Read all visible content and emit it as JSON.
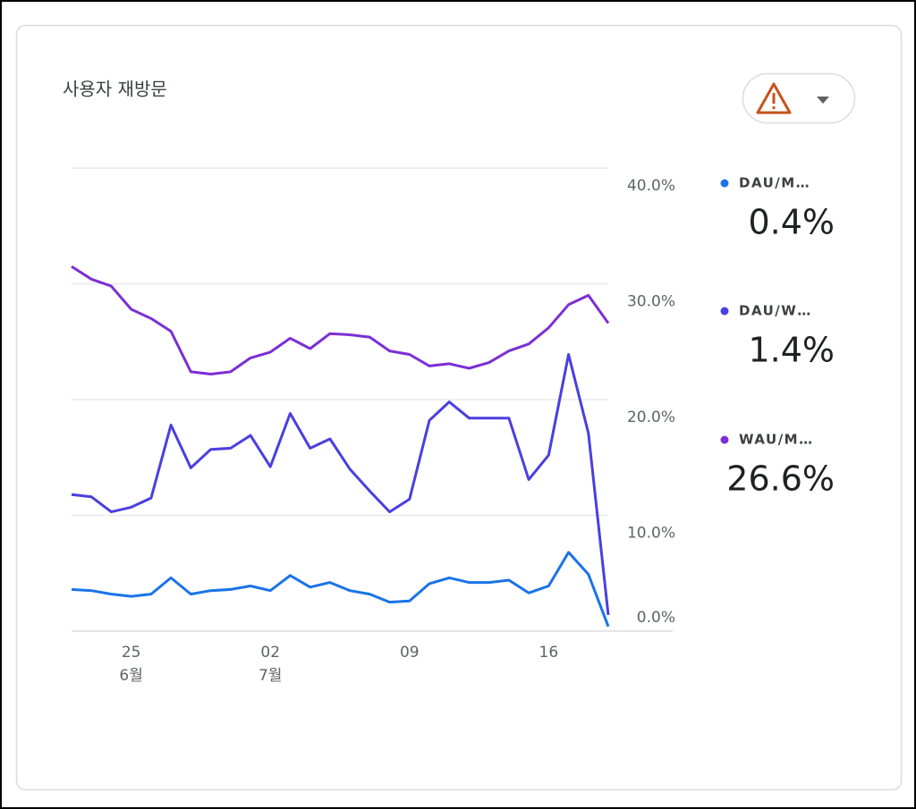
{
  "chart_data": {
    "type": "line",
    "title": "사용자 재방문",
    "categories": [
      null,
      null,
      null,
      "25",
      null,
      null,
      null,
      null,
      null,
      null,
      "02",
      null,
      null,
      null,
      null,
      null,
      null,
      "09",
      null,
      null,
      null,
      null,
      null,
      null,
      "16",
      null,
      null,
      null
    ],
    "category_sublabels": [
      null,
      null,
      null,
      "6월",
      null,
      null,
      null,
      null,
      null,
      null,
      "7월",
      null,
      null,
      null,
      null,
      null,
      null,
      null,
      null,
      null,
      null,
      null,
      null,
      null,
      null,
      null,
      null,
      null
    ],
    "ylim": [
      0,
      40
    ],
    "yticks": [
      {
        "value": 0,
        "label": "0.0%"
      },
      {
        "value": 10,
        "label": "10.0%"
      },
      {
        "value": 20,
        "label": "20.0%"
      },
      {
        "value": 30,
        "label": "30.0%"
      },
      {
        "value": 40,
        "label": "40.0%"
      }
    ],
    "grid": true,
    "legend": "right",
    "series": [
      {
        "name": "DAU/M…",
        "color": "#1a73e8",
        "values": [
          3.6,
          3.5,
          3.2,
          3.0,
          3.2,
          4.6,
          3.2,
          3.5,
          3.6,
          3.9,
          3.5,
          4.8,
          3.8,
          4.2,
          3.5,
          3.2,
          2.5,
          2.6,
          4.1,
          4.6,
          4.2,
          4.2,
          4.4,
          3.3,
          3.9,
          6.8,
          4.9,
          0.4
        ],
        "value_labels": [
          null,
          null,
          null,
          null,
          null,
          null,
          null,
          null,
          null,
          null,
          null,
          null,
          null,
          null,
          null,
          null,
          null,
          null,
          null,
          null,
          null,
          null,
          null,
          null,
          null,
          null,
          null,
          "0.4%"
        ]
      },
      {
        "name": "DAU/W…",
        "color": "#4a3fe0",
        "values": [
          11.8,
          11.6,
          10.3,
          10.7,
          11.5,
          17.8,
          14.1,
          15.7,
          15.8,
          16.9,
          14.2,
          18.8,
          15.8,
          16.6,
          14.0,
          12.1,
          10.3,
          11.4,
          18.2,
          19.8,
          18.4,
          18.4,
          18.4,
          13.1,
          15.2,
          23.9,
          17.1,
          1.4
        ],
        "value_labels": [
          null,
          null,
          null,
          null,
          null,
          null,
          null,
          null,
          null,
          null,
          null,
          null,
          null,
          null,
          null,
          null,
          null,
          null,
          null,
          null,
          null,
          null,
          null,
          null,
          null,
          null,
          null,
          "1.4%"
        ]
      },
      {
        "name": "WAU/M…",
        "color": "#7b2fd4",
        "values": [
          31.5,
          30.4,
          29.8,
          27.8,
          27.0,
          25.9,
          22.4,
          22.2,
          22.4,
          23.6,
          24.1,
          25.3,
          24.4,
          25.7,
          25.6,
          25.4,
          24.2,
          23.9,
          22.9,
          23.1,
          22.7,
          23.2,
          24.2,
          24.8,
          26.2,
          28.2,
          29.0,
          26.6
        ],
        "value_labels": [
          null,
          null,
          null,
          null,
          null,
          null,
          null,
          null,
          null,
          null,
          null,
          null,
          null,
          null,
          null,
          null,
          null,
          null,
          null,
          null,
          null,
          null,
          null,
          null,
          null,
          null,
          null,
          "26.6%"
        ]
      }
    ]
  }
}
